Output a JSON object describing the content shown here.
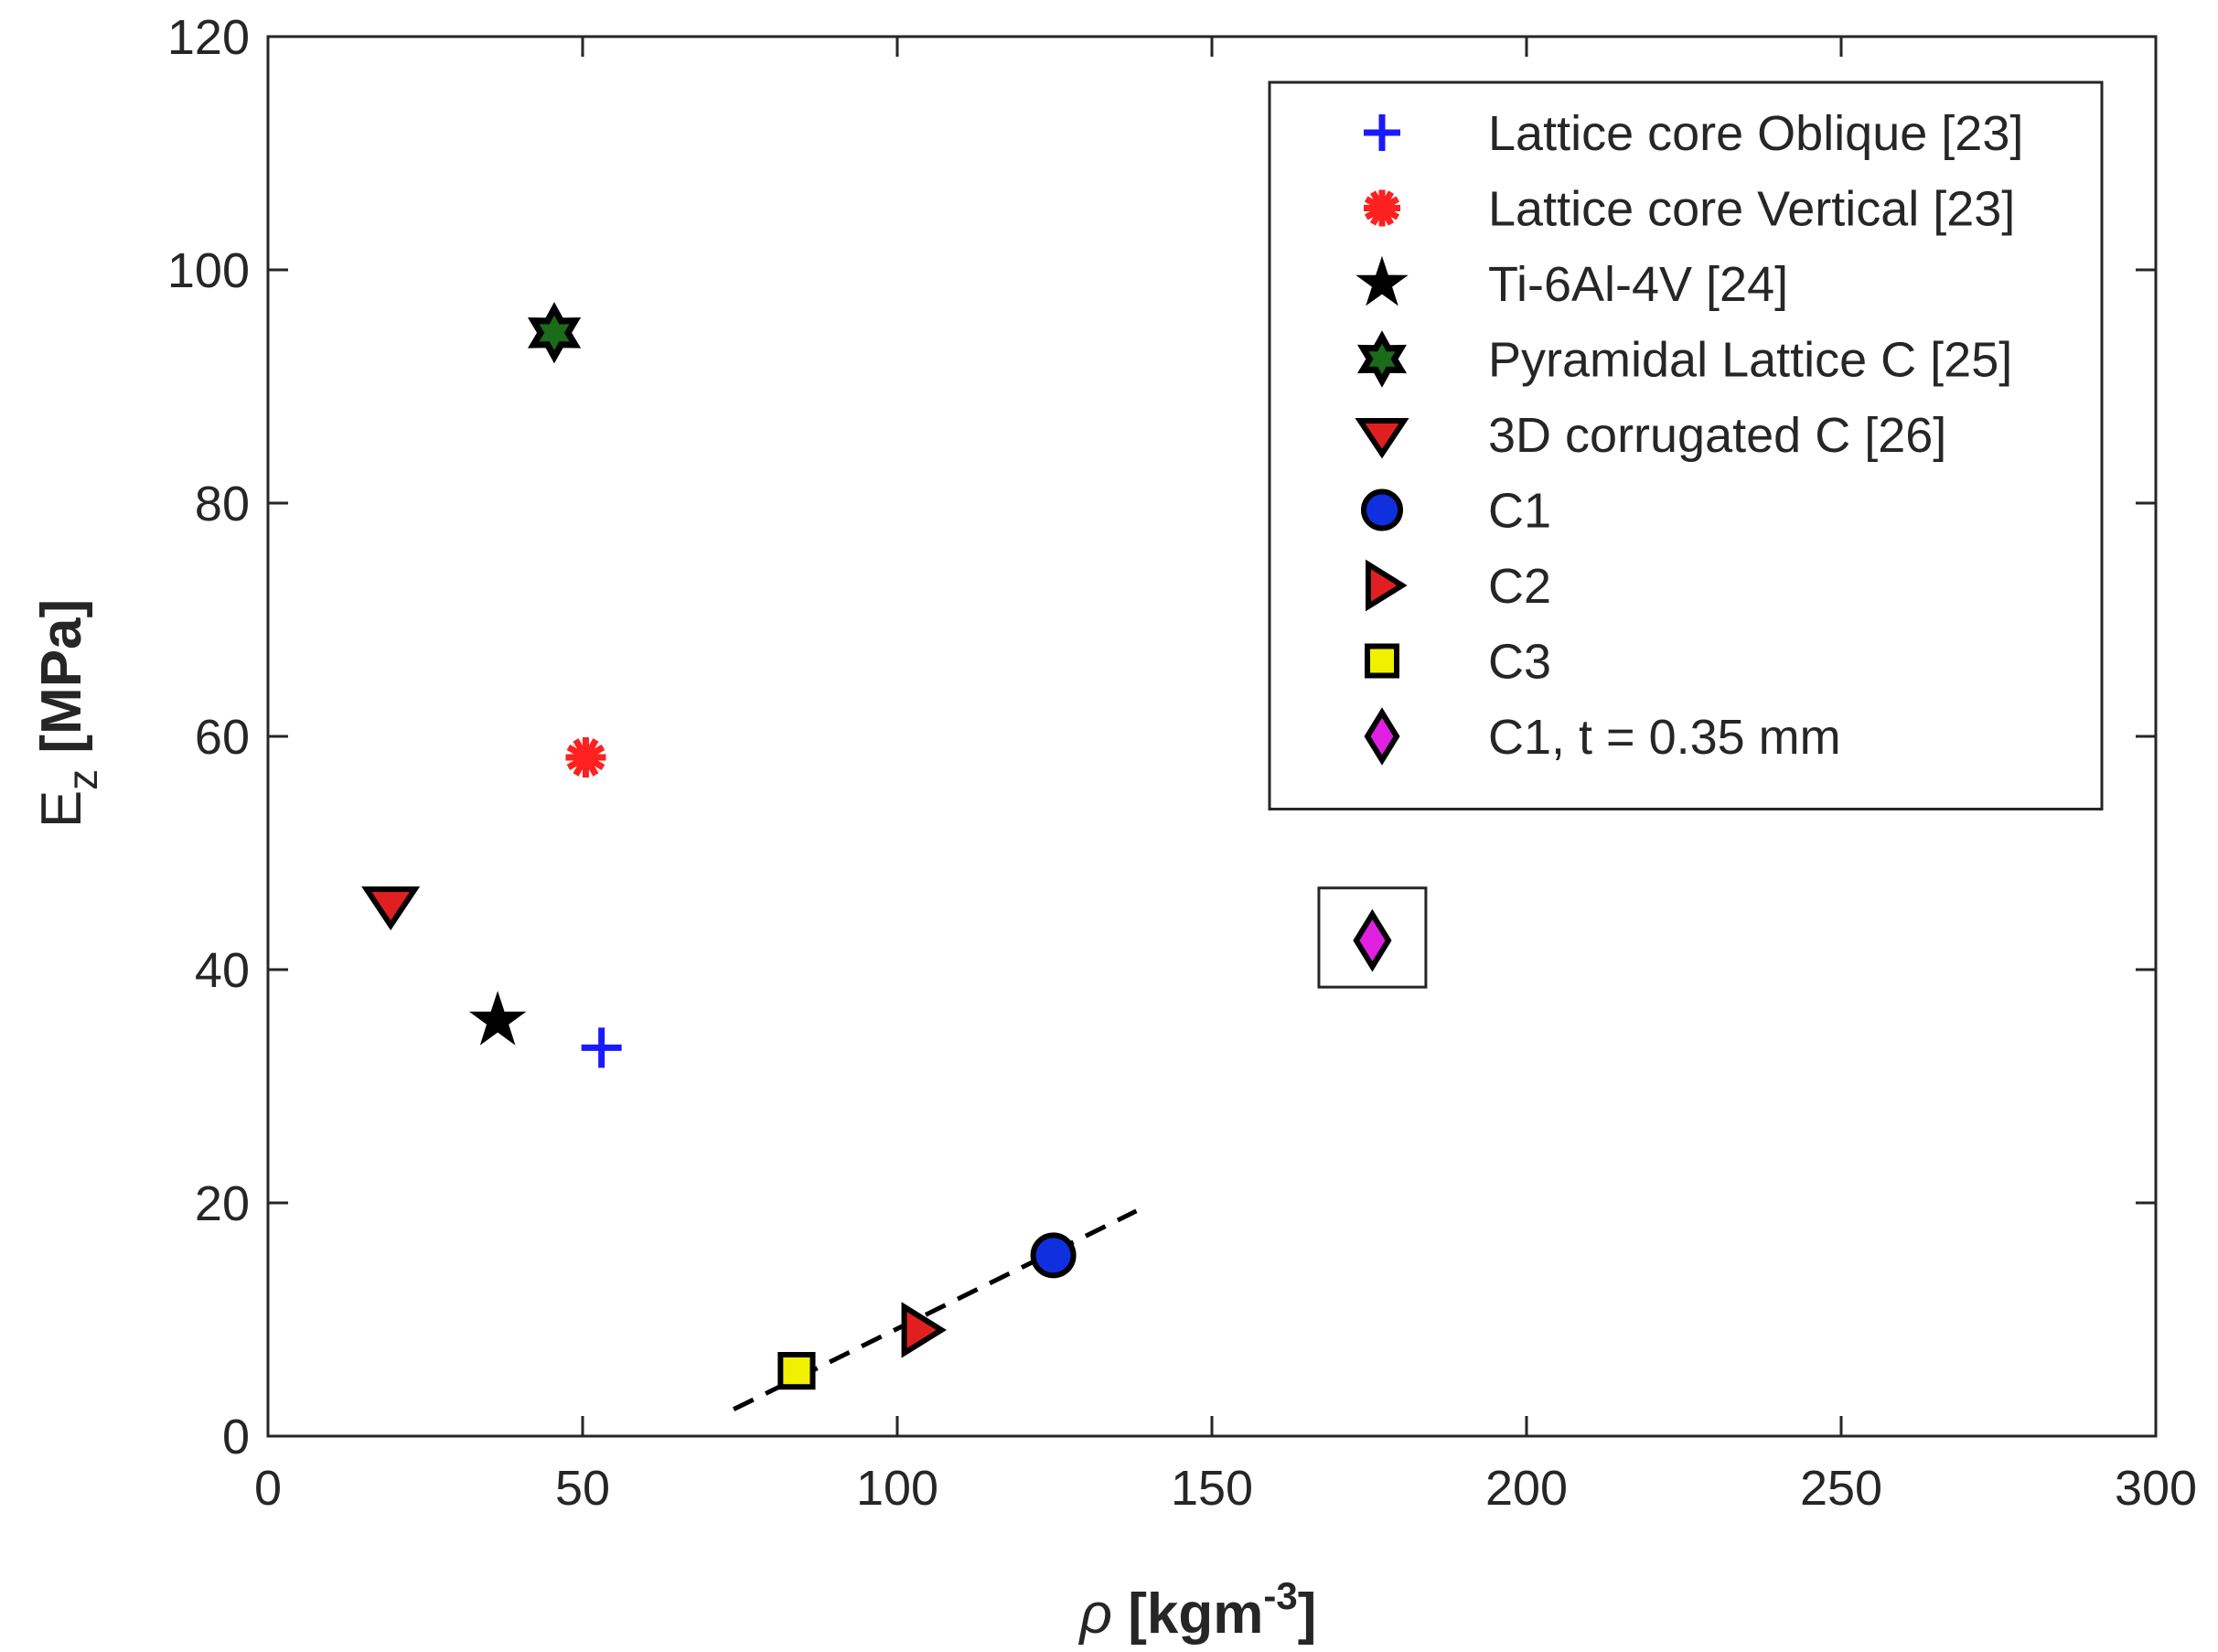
{
  "chart_data": {
    "type": "scatter",
    "xlabel": {
      "symbol": "ρ",
      "unit_pre": " [kgm",
      "unit_sup": "-3",
      "unit_post": "]"
    },
    "ylabel": {
      "base": "E",
      "sub": "z",
      "unit": " [MPa]"
    },
    "xlim": [
      0,
      300
    ],
    "ylim": [
      0,
      120
    ],
    "xticks": [
      0,
      50,
      100,
      150,
      200,
      250,
      300
    ],
    "yticks": [
      0,
      20,
      40,
      60,
      80,
      100,
      120
    ],
    "grid": false,
    "legend_position": "top-right",
    "series": [
      {
        "name": "Lattice core Oblique [23]",
        "marker": "plus",
        "color": "#1a1aff",
        "edge": "#1a1aff",
        "points": [
          {
            "x": 53,
            "y": 33.3
          }
        ]
      },
      {
        "name": "Lattice core Vertical [23]",
        "marker": "asterisk",
        "color": "#ff2020",
        "edge": "#ff2020",
        "points": [
          {
            "x": 50.5,
            "y": 58.2
          }
        ]
      },
      {
        "name": "Ti-6Al-4V [24]",
        "marker": "star5",
        "color": "#000000",
        "edge": "#000000",
        "points": [
          {
            "x": 36.5,
            "y": 35.6
          }
        ]
      },
      {
        "name": "Pyramidal Lattice C [25]",
        "marker": "hexagram",
        "color": "#1a6b1a",
        "edge": "#000000",
        "points": [
          {
            "x": 45.5,
            "y": 94.6
          }
        ]
      },
      {
        "name": "3D corrugated C [26]",
        "marker": "triangle-down",
        "color": "#e02020",
        "edge": "#000000",
        "points": [
          {
            "x": 19.5,
            "y": 45.6
          }
        ]
      },
      {
        "name": "C1",
        "marker": "circle",
        "color": "#1030e0",
        "edge": "#000000",
        "points": [
          {
            "x": 124.8,
            "y": 15.5
          }
        ]
      },
      {
        "name": "C2",
        "marker": "triangle-right",
        "color": "#e02020",
        "edge": "#000000",
        "points": [
          {
            "x": 103.5,
            "y": 9.1
          }
        ]
      },
      {
        "name": "C3",
        "marker": "square",
        "color": "#f0f000",
        "edge": "#000000",
        "points": [
          {
            "x": 84,
            "y": 5.6
          }
        ]
      },
      {
        "name": "C1, t = 0.35 mm",
        "marker": "diamond",
        "color": "#e020e0",
        "edge": "#000000",
        "points": [
          {
            "x": 175.5,
            "y": 42.5
          }
        ]
      }
    ],
    "trendline": {
      "style": "dashed",
      "color": "#000000",
      "points": [
        {
          "x": 74,
          "y": 2.3
        },
        {
          "x": 138,
          "y": 19.3
        }
      ]
    },
    "highlight_box": {
      "x": [
        167,
        184
      ],
      "y": [
        38.5,
        47
      ]
    }
  }
}
